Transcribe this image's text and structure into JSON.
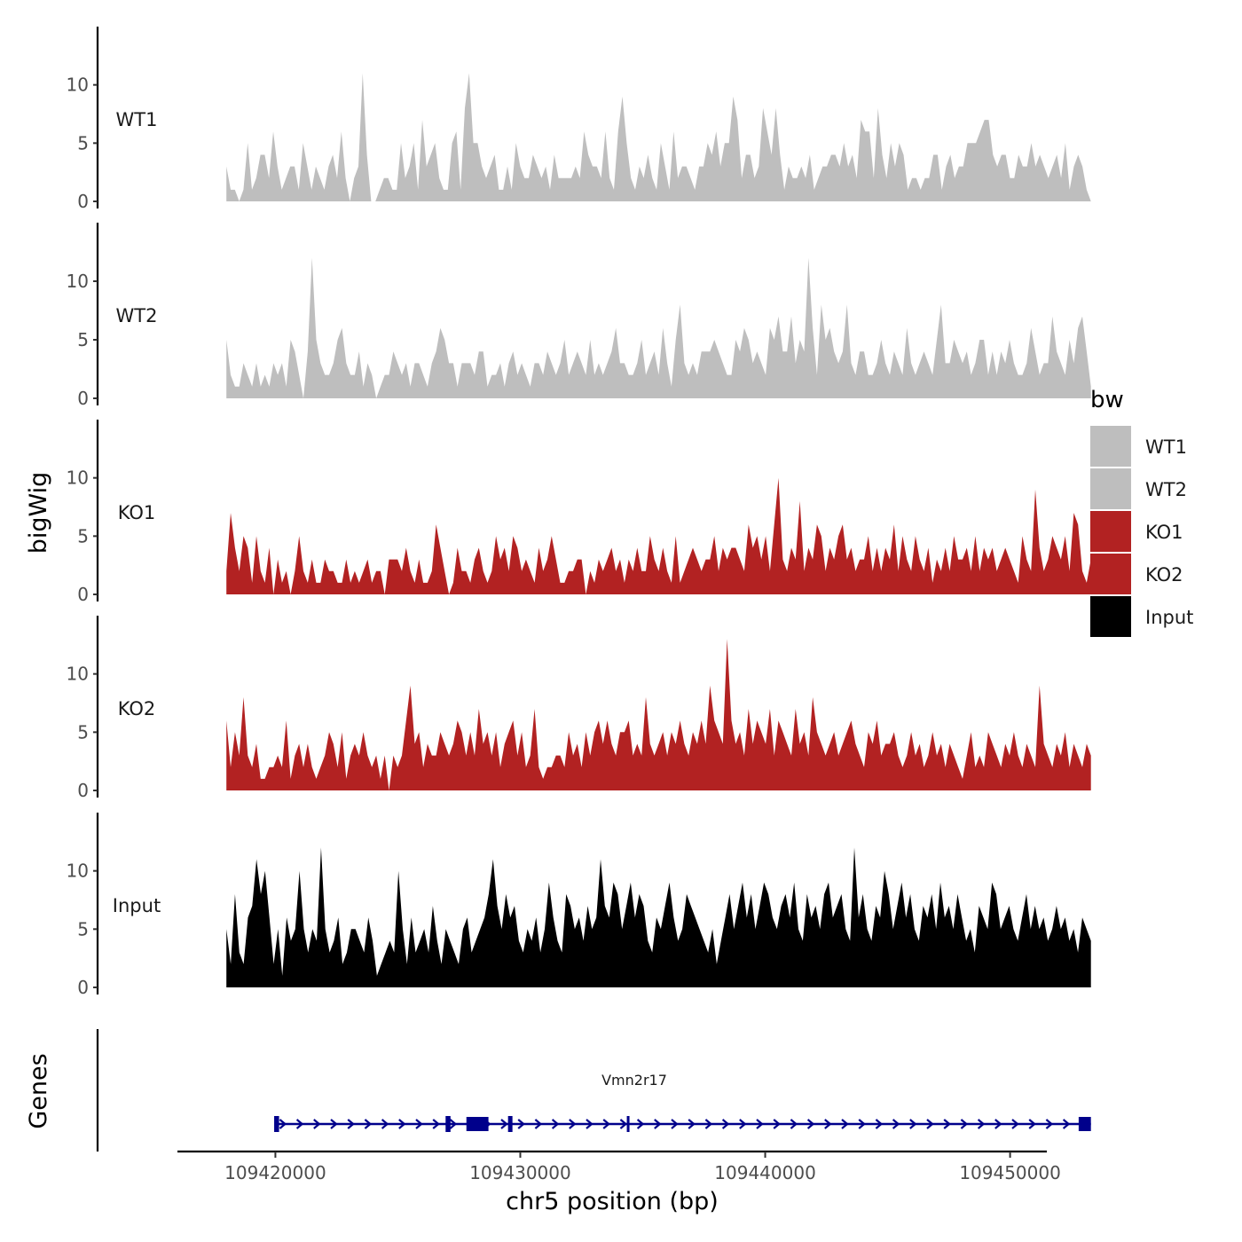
{
  "chart_data": {
    "type": "area",
    "chromosome": "chr5",
    "xlabel": "chr5 position (bp)",
    "ylabel": "bigWig",
    "xlim": [
      109416000,
      109451500
    ],
    "data_range": [
      109418000,
      109453300
    ],
    "xticks": [
      109420000,
      109430000,
      109440000,
      109450000
    ],
    "ylim": [
      0,
      15
    ],
    "yticks": [
      0,
      5,
      10
    ],
    "gene_track_label": "Genes",
    "tracks": [
      {
        "name": "WT1",
        "color": "#bebebe",
        "values": [
          3,
          1,
          1,
          0,
          1,
          5,
          1,
          2,
          4,
          4,
          2,
          6,
          3,
          1,
          2,
          3,
          3,
          1,
          5,
          3,
          1,
          3,
          2,
          1,
          3,
          4,
          2,
          6,
          2,
          0,
          2,
          3,
          11,
          4,
          0,
          0,
          1,
          2,
          2,
          1,
          1,
          5,
          2,
          3,
          5,
          1,
          7,
          3,
          4,
          5,
          2,
          1,
          1,
          5,
          6,
          1,
          8,
          11,
          5,
          5,
          3,
          2,
          3,
          4,
          1,
          1,
          3,
          1,
          5,
          3,
          2,
          2,
          4,
          3,
          2,
          3,
          1,
          4,
          2,
          2,
          2,
          2,
          3,
          2,
          6,
          4,
          3,
          3,
          2,
          6,
          2,
          1,
          6,
          9,
          5,
          2,
          1,
          3,
          2,
          4,
          2,
          1,
          5,
          3,
          1,
          6,
          2,
          3,
          3,
          2,
          1,
          3,
          3,
          5,
          4,
          6,
          3,
          5,
          5,
          9,
          7,
          2,
          4,
          4,
          2,
          3,
          8,
          6,
          4,
          8,
          4,
          1,
          3,
          2,
          2,
          3,
          2,
          4,
          1,
          2,
          3,
          3,
          4,
          4,
          3,
          5,
          3,
          4,
          2,
          7,
          6,
          6,
          2,
          8,
          4,
          2,
          5,
          3,
          5,
          4,
          1,
          2,
          2,
          1,
          2,
          2,
          4,
          4,
          1,
          3,
          4,
          2,
          3,
          3,
          5,
          5,
          5,
          6,
          7,
          7,
          4,
          3,
          4,
          4,
          2,
          2,
          4,
          3,
          3,
          5,
          3,
          4,
          3,
          2,
          3,
          4,
          2,
          5,
          1,
          3,
          4,
          3,
          1,
          0
        ]
      },
      {
        "name": "WT2",
        "color": "#bebebe",
        "values": [
          5,
          2,
          1,
          1,
          3,
          2,
          1,
          3,
          1,
          2,
          1,
          3,
          2,
          3,
          1,
          5,
          4,
          2,
          0,
          4,
          12,
          5,
          3,
          2,
          2,
          3,
          5,
          6,
          3,
          2,
          2,
          4,
          1,
          3,
          2,
          0,
          1,
          2,
          2,
          4,
          3,
          2,
          3,
          1,
          3,
          3,
          2,
          1,
          3,
          4,
          6,
          5,
          3,
          3,
          1,
          3,
          3,
          3,
          2,
          4,
          4,
          1,
          2,
          2,
          3,
          1,
          3,
          4,
          2,
          3,
          2,
          1,
          3,
          3,
          2,
          4,
          3,
          2,
          3,
          5,
          2,
          3,
          4,
          3,
          2,
          5,
          2,
          3,
          2,
          3,
          4,
          6,
          3,
          3,
          2,
          2,
          3,
          5,
          2,
          3,
          4,
          2,
          6,
          3,
          1,
          5,
          8,
          3,
          2,
          3,
          2,
          4,
          4,
          4,
          5,
          4,
          3,
          2,
          2,
          5,
          4,
          6,
          5,
          3,
          4,
          3,
          2,
          6,
          5,
          7,
          4,
          4,
          7,
          3,
          5,
          4,
          12,
          6,
          2,
          8,
          5,
          6,
          4,
          3,
          4,
          8,
          3,
          2,
          4,
          4,
          2,
          2,
          3,
          5,
          3,
          2,
          4,
          3,
          2,
          6,
          3,
          2,
          3,
          4,
          3,
          2,
          5,
          8,
          3,
          3,
          5,
          4,
          3,
          4,
          2,
          3,
          5,
          5,
          2,
          4,
          2,
          4,
          3,
          5,
          3,
          2,
          2,
          3,
          6,
          4,
          2,
          3,
          3,
          7,
          4,
          3,
          2,
          5,
          3,
          6,
          7,
          4,
          1
        ]
      },
      {
        "name": "KO1",
        "color": "#b22222",
        "values": [
          2,
          7,
          4,
          2,
          5,
          4,
          1,
          5,
          2,
          1,
          4,
          0,
          3,
          1,
          2,
          0,
          2,
          5,
          2,
          1,
          3,
          1,
          1,
          3,
          2,
          2,
          1,
          1,
          3,
          1,
          2,
          1,
          2,
          3,
          1,
          2,
          2,
          0,
          3,
          3,
          3,
          2,
          4,
          2,
          1,
          3,
          1,
          1,
          2,
          6,
          4,
          2,
          0,
          1,
          4,
          2,
          2,
          1,
          3,
          4,
          2,
          1,
          2,
          5,
          3,
          4,
          2,
          5,
          4,
          2,
          3,
          2,
          1,
          4,
          2,
          3,
          5,
          3,
          1,
          1,
          2,
          2,
          3,
          3,
          0,
          2,
          1,
          3,
          2,
          3,
          4,
          2,
          3,
          1,
          3,
          2,
          4,
          2,
          2,
          5,
          3,
          2,
          4,
          2,
          1,
          5,
          1,
          2,
          3,
          4,
          3,
          2,
          3,
          3,
          5,
          2,
          4,
          3,
          4,
          4,
          3,
          2,
          6,
          4,
          5,
          3,
          5,
          2,
          6,
          10,
          3,
          2,
          4,
          3,
          8,
          2,
          4,
          3,
          6,
          5,
          2,
          4,
          3,
          5,
          6,
          3,
          4,
          2,
          3,
          3,
          5,
          2,
          4,
          2,
          4,
          3,
          6,
          2,
          5,
          3,
          2,
          5,
          3,
          2,
          4,
          1,
          3,
          2,
          4,
          2,
          5,
          3,
          3,
          4,
          2,
          5,
          2,
          4,
          3,
          4,
          2,
          3,
          4,
          3,
          2,
          1,
          5,
          3,
          2,
          9,
          4,
          2,
          3,
          5,
          4,
          3,
          5,
          2,
          7,
          6,
          2,
          1,
          3
        ]
      },
      {
        "name": "KO2",
        "color": "#b22222",
        "values": [
          6,
          2,
          5,
          3,
          8,
          3,
          2,
          4,
          1,
          1,
          2,
          2,
          3,
          2,
          6,
          1,
          3,
          4,
          2,
          4,
          2,
          1,
          2,
          3,
          5,
          4,
          2,
          5,
          1,
          3,
          4,
          3,
          5,
          3,
          2,
          3,
          1,
          3,
          0,
          3,
          2,
          3,
          6,
          9,
          4,
          5,
          2,
          4,
          3,
          3,
          5,
          4,
          3,
          4,
          6,
          5,
          3,
          5,
          3,
          7,
          4,
          5,
          3,
          5,
          2,
          4,
          5,
          6,
          3,
          5,
          2,
          3,
          7,
          2,
          1,
          2,
          2,
          3,
          3,
          2,
          5,
          3,
          4,
          2,
          5,
          3,
          5,
          6,
          4,
          6,
          4,
          3,
          5,
          5,
          6,
          3,
          4,
          3,
          8,
          4,
          3,
          4,
          5,
          3,
          5,
          4,
          6,
          4,
          3,
          5,
          4,
          6,
          4,
          9,
          6,
          5,
          4,
          13,
          6,
          4,
          5,
          3,
          7,
          4,
          6,
          5,
          4,
          7,
          3,
          6,
          5,
          4,
          3,
          7,
          4,
          5,
          3,
          8,
          5,
          4,
          3,
          4,
          5,
          3,
          4,
          5,
          6,
          4,
          3,
          2,
          5,
          4,
          6,
          3,
          4,
          4,
          5,
          3,
          2,
          3,
          5,
          3,
          4,
          2,
          3,
          5,
          3,
          4,
          2,
          4,
          3,
          2,
          1,
          3,
          5,
          2,
          3,
          2,
          5,
          4,
          3,
          2,
          4,
          3,
          5,
          3,
          2,
          4,
          3,
          2,
          9,
          4,
          3,
          2,
          4,
          3,
          5,
          2,
          4,
          3,
          2,
          4,
          3
        ]
      },
      {
        "name": "Input",
        "color": "#000000",
        "values": [
          5,
          2,
          8,
          3,
          2,
          6,
          7,
          11,
          8,
          10,
          6,
          2,
          5,
          1,
          6,
          4,
          5,
          10,
          5,
          3,
          5,
          4,
          12,
          5,
          3,
          4,
          6,
          2,
          3,
          5,
          5,
          4,
          3,
          6,
          4,
          1,
          2,
          3,
          4,
          3,
          10,
          5,
          2,
          6,
          3,
          4,
          5,
          3,
          7,
          4,
          2,
          5,
          4,
          3,
          2,
          5,
          6,
          3,
          4,
          5,
          6,
          8,
          11,
          7,
          5,
          8,
          6,
          7,
          4,
          3,
          5,
          4,
          6,
          3,
          5,
          9,
          6,
          4,
          3,
          8,
          7,
          5,
          6,
          4,
          7,
          5,
          6,
          11,
          7,
          6,
          9,
          8,
          5,
          7,
          9,
          6,
          8,
          7,
          4,
          3,
          6,
          5,
          7,
          9,
          6,
          4,
          5,
          8,
          7,
          6,
          5,
          4,
          3,
          5,
          2,
          4,
          6,
          8,
          5,
          7,
          9,
          6,
          8,
          5,
          7,
          9,
          8,
          6,
          5,
          7,
          8,
          6,
          9,
          5,
          4,
          8,
          6,
          7,
          5,
          8,
          9,
          6,
          7,
          8,
          5,
          4,
          12,
          6,
          8,
          5,
          4,
          7,
          6,
          10,
          8,
          5,
          7,
          9,
          6,
          8,
          5,
          4,
          7,
          6,
          8,
          5,
          9,
          6,
          7,
          5,
          8,
          6,
          4,
          5,
          3,
          7,
          6,
          5,
          9,
          8,
          5,
          6,
          7,
          5,
          4,
          6,
          8,
          5,
          7,
          5,
          6,
          4,
          5,
          7,
          5,
          6,
          4,
          5,
          3,
          6,
          5,
          4
        ]
      }
    ],
    "gene": {
      "name": "Vmn2r17",
      "color": "#00008b",
      "strand": "+",
      "start": 109420000,
      "end": 109453300,
      "exons": [
        [
          109419950,
          109420150
        ],
        [
          109426950,
          109427150
        ],
        [
          109427800,
          109428700
        ],
        [
          109429500,
          109429680
        ],
        [
          109434350,
          109434450
        ],
        [
          109452800,
          109453300
        ]
      ]
    },
    "legend": {
      "title": "bw",
      "position": "right",
      "entries": [
        {
          "label": "WT1",
          "color": "#bebebe"
        },
        {
          "label": "WT2",
          "color": "#bebebe"
        },
        {
          "label": "KO1",
          "color": "#b22222"
        },
        {
          "label": "KO2",
          "color": "#b22222"
        },
        {
          "label": "Input",
          "color": "#000000"
        }
      ]
    }
  }
}
